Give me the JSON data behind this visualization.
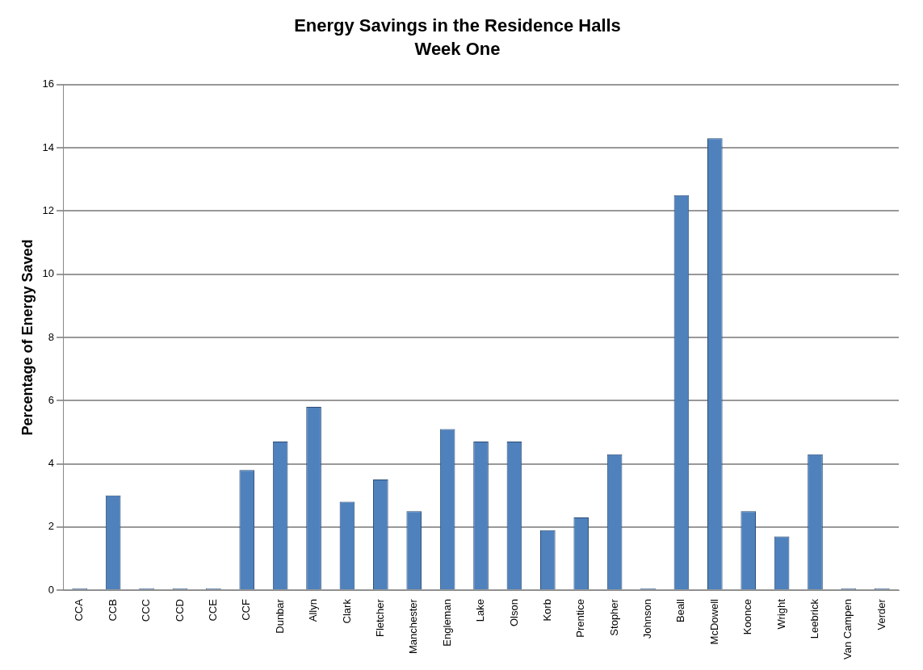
{
  "chart_data": {
    "type": "bar",
    "title": "Energy Savings in the Residence Halls",
    "subtitle": "Week One",
    "ylabel": "Percentage of Energy Saved",
    "categories": [
      "CCA",
      "CCB",
      "CCC",
      "CCD",
      "CCE",
      "CCF",
      "Dunbar",
      "Allyn",
      "Clark",
      "Fletcher",
      "Manchester",
      "Engleman",
      "Lake",
      "Olson",
      "Korb",
      "Prentice",
      "Stopher",
      "Johnson",
      "Beall",
      "McDowell",
      "Koonce",
      "Wright",
      "Leebrick",
      "Van Campen",
      "Verder"
    ],
    "values": [
      0,
      3.0,
      0,
      0,
      0,
      3.8,
      4.7,
      5.8,
      2.8,
      3.5,
      2.5,
      5.1,
      4.7,
      4.7,
      1.9,
      2.3,
      4.3,
      0,
      12.5,
      14.3,
      2.5,
      1.7,
      4.3,
      0,
      0
    ],
    "color": "#4f81bd",
    "ylim": [
      0,
      16
    ],
    "yticks": [
      0,
      2,
      4,
      6,
      8,
      10,
      12,
      14,
      16
    ],
    "grid": "y",
    "legend": false
  }
}
